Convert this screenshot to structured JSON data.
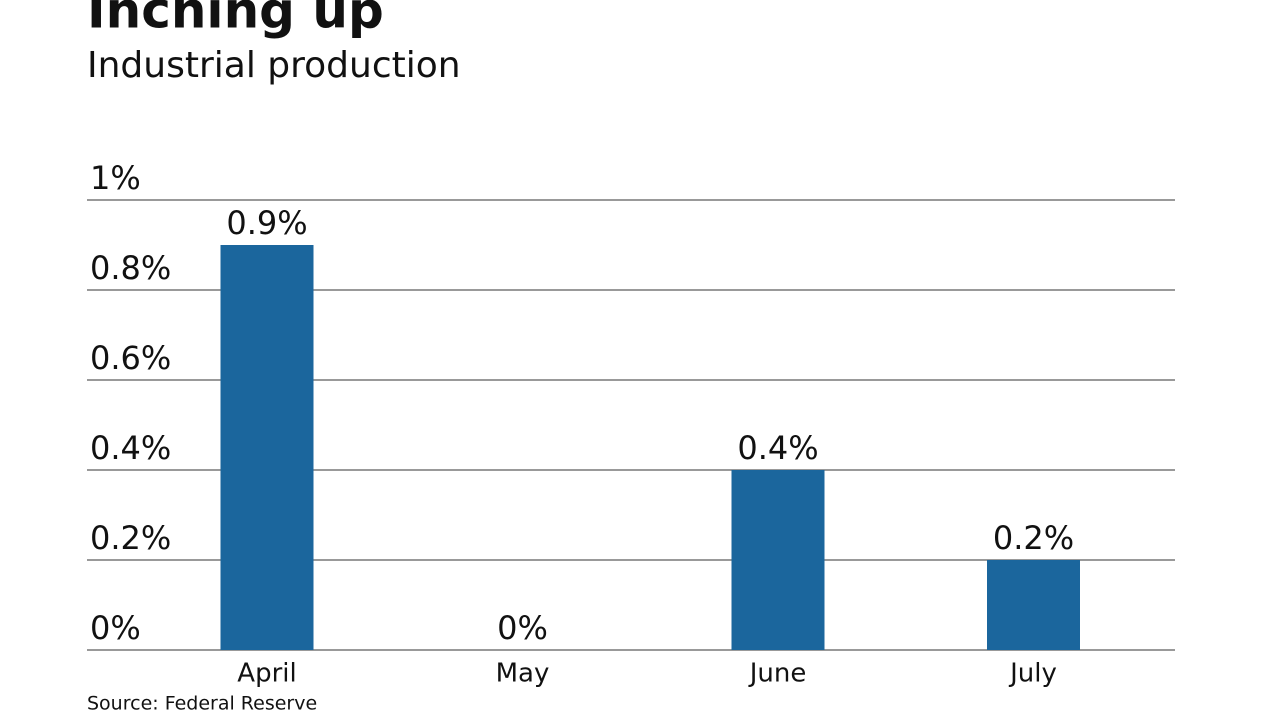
{
  "chart_data": {
    "type": "bar",
    "title": "Inching up",
    "subtitle": "Industrial production",
    "categories": [
      "April",
      "May",
      "June",
      "July"
    ],
    "values": [
      0.9,
      0,
      0.4,
      0.2
    ],
    "value_labels": [
      "0.9%",
      "0%",
      "0.4%",
      "0.2%"
    ],
    "color": "#1b669d",
    "ylim": [
      0,
      1
    ],
    "yticks": [
      {
        "value": 0,
        "label": "0%"
      },
      {
        "value": 0.2,
        "label": "0.2%"
      },
      {
        "value": 0.4,
        "label": "0.4%"
      },
      {
        "value": 0.6,
        "label": "0.6%"
      },
      {
        "value": 0.8,
        "label": "0.8%"
      },
      {
        "value": 1,
        "label": "1%"
      }
    ],
    "grid": true,
    "source": "Source: Federal Reserve"
  }
}
